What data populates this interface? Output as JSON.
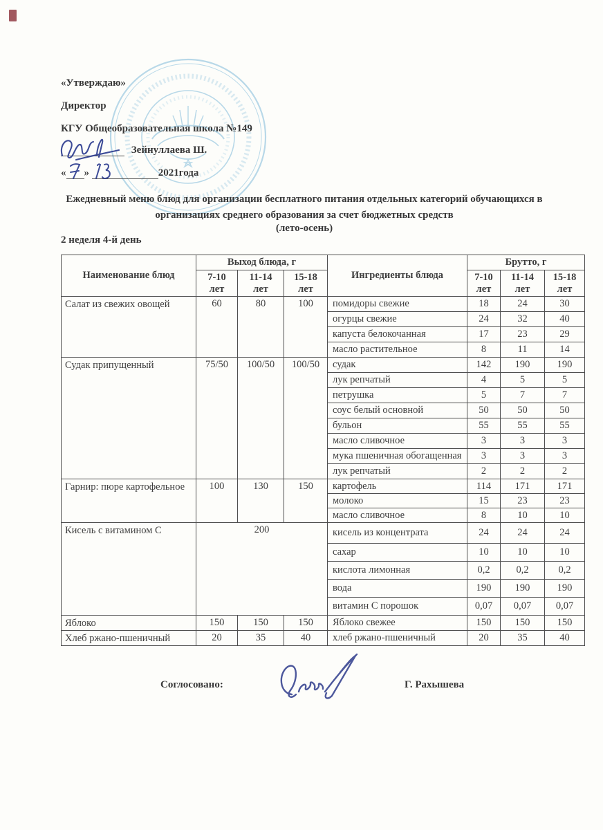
{
  "approval": {
    "line1": "«Утверждаю»",
    "line2": "Директор",
    "line3": "КГУ Общеобразовательная школа №149",
    "signer": "Зейнуллаева Ш.",
    "quote_open": "«",
    "quote_close": "»",
    "year": "2021года"
  },
  "title": {
    "line1": "Ежедневный меню блюд для организации бесплатного питания отдельных категорий обучающихся в",
    "line2": "организациях среднего образования за счет бюджетных средств",
    "season": "(лето-осень)",
    "week_day": "2 неделя 4-й день"
  },
  "table": {
    "headers": {
      "dish": "Наименование блюд",
      "output": "Выход блюда, г",
      "ingredients": "Ингредиенты блюда",
      "gross": "Брутто, г",
      "age_groups": [
        "7-10 лет",
        "11-14 лет",
        "15-18 лет"
      ]
    },
    "sections": [
      {
        "dish": "Салат из свежих овощей",
        "output": [
          "60",
          "80",
          "100"
        ],
        "rows": [
          {
            "ingredient": "помидоры свежие",
            "gross": [
              "18",
              "24",
              "30"
            ]
          },
          {
            "ingredient": "огурцы свежие",
            "gross": [
              "24",
              "32",
              "40"
            ]
          },
          {
            "ingredient": "капуста белокочанная",
            "gross": [
              "17",
              "23",
              "29"
            ]
          },
          {
            "ingredient": "масло растительное",
            "gross": [
              "8",
              "11",
              "14"
            ]
          }
        ]
      },
      {
        "dish": "Судак припущенный",
        "output": [
          "75/50",
          "100/50",
          "100/50"
        ],
        "rows": [
          {
            "ingredient": "судак",
            "gross": [
              "142",
              "190",
              "190"
            ]
          },
          {
            "ingredient": "лук репчатый",
            "gross": [
              "4",
              "5",
              "5"
            ]
          },
          {
            "ingredient": "петрушка",
            "gross": [
              "5",
              "7",
              "7"
            ]
          },
          {
            "ingredient": "соус белый основной",
            "gross": [
              "50",
              "50",
              "50"
            ]
          },
          {
            "ingredient": "бульон",
            "gross": [
              "55",
              "55",
              "55"
            ]
          },
          {
            "ingredient": "масло сливочное",
            "gross": [
              "3",
              "3",
              "3"
            ]
          },
          {
            "ingredient": "мука пшеничная обогащенная",
            "gross": [
              "3",
              "3",
              "3"
            ]
          },
          {
            "ingredient": "лук репчатый",
            "gross": [
              "2",
              "2",
              "2"
            ]
          }
        ]
      },
      {
        "dish": "Гарнир: пюре картофельное",
        "output": [
          "100",
          "130",
          "150"
        ],
        "rows": [
          {
            "ingredient": "картофель",
            "gross": [
              "114",
              "171",
              "171"
            ]
          },
          {
            "ingredient": "молоко",
            "gross": [
              "15",
              "23",
              "23"
            ]
          },
          {
            "ingredient": "масло сливочное",
            "gross": [
              "8",
              "10",
              "10"
            ]
          }
        ]
      },
      {
        "dish": "Кисель с витамином С",
        "output_merged": "200",
        "rows": [
          {
            "ingredient": "кисель из концентрата",
            "gross": [
              "24",
              "24",
              "24"
            ]
          },
          {
            "ingredient": "сахар",
            "gross": [
              "10",
              "10",
              "10"
            ]
          },
          {
            "ingredient": "кислота лимонная",
            "gross": [
              "0,2",
              "0,2",
              "0,2"
            ]
          },
          {
            "ingredient": "вода",
            "gross": [
              "190",
              "190",
              "190"
            ]
          },
          {
            "ingredient": "витамин С порошок",
            "gross": [
              "0,07",
              "0,07",
              "0,07"
            ]
          }
        ]
      },
      {
        "dish": "Яблоко",
        "output": [
          "150",
          "150",
          "150"
        ],
        "rows": [
          {
            "ingredient": "Яблоко свежее",
            "gross": [
              "150",
              "150",
              "150"
            ]
          }
        ]
      },
      {
        "dish": "Хлеб ржано-пшеничный",
        "output": [
          "20",
          "35",
          "40"
        ],
        "rows": [
          {
            "ingredient": "хлеб ржано-пшеничный",
            "gross": [
              "20",
              "35",
              "40"
            ]
          }
        ]
      }
    ]
  },
  "footer": {
    "agreed_label": "Соглосовано:",
    "agreed_name": "Г. Рахышева"
  },
  "colors": {
    "stamp_blue": "#8fc3de",
    "ink_blue": "#2e3e90",
    "text": "#3c3c3c",
    "corner_mark_red": "#8b2f38"
  }
}
